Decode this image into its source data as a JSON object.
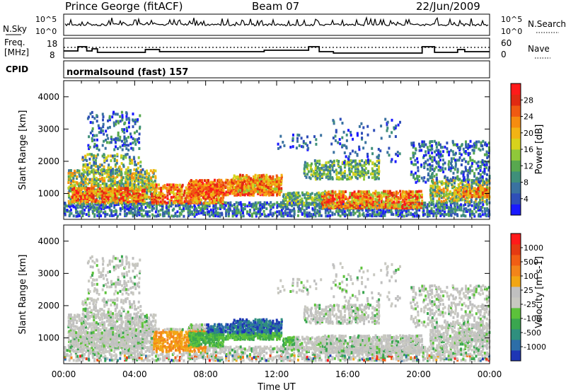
{
  "header": {
    "station": "Prince George (fitACF)",
    "beam": "Beam 07",
    "date": "22/Jun/2009",
    "cpid_label": "CPID",
    "cpid_value": "normalsound (fast) 157"
  },
  "top_panels": {
    "nsky_label": "N.Sky",
    "nsearch_label": "N.Search",
    "noise_ticks": [
      "10^5",
      "10^0"
    ],
    "freq_label_line1": "Freq.",
    "freq_label_line2": "[MHz]",
    "freq_ticks": [
      "18",
      "8"
    ],
    "nave_label": "Nave",
    "nave_ticks": [
      "60",
      "0"
    ]
  },
  "chart_data": [
    {
      "type": "heatmap",
      "name": "power",
      "ylabel": "Slant Range [km]",
      "xlabel": "Time UT",
      "ylim": [
        200,
        4500
      ],
      "yticks": [
        1000,
        2000,
        3000,
        4000
      ],
      "xlim_hours": [
        0,
        24
      ],
      "colorbar_label": "Power [dB]",
      "colorbar_ticks": [
        "4",
        "8",
        "12",
        "16",
        "20",
        "24",
        "28"
      ],
      "colorbar_colors": [
        "#1a1aff",
        "#2f4fb8",
        "#3a72a0",
        "#3f8f7a",
        "#58a84f",
        "#8fc83a",
        "#d7d21c",
        "#f2b315",
        "#f58c10",
        "#ef5a12",
        "#e02a12",
        "#ff1a1a"
      ]
    },
    {
      "type": "heatmap",
      "name": "velocity",
      "ylabel": "Slant Range [km]",
      "xlabel": "Time UT",
      "ylim": [
        200,
        4500
      ],
      "yticks": [
        1000,
        2000,
        3000,
        4000
      ],
      "xlim_hours": [
        0,
        24
      ],
      "colorbar_label": "Velocity [m s-1]",
      "colorbar_ticks": [
        "1000",
        "500",
        "100",
        "25",
        "-25",
        "-100",
        "-500",
        "-1000"
      ],
      "colorbar_colors": [
        "#1e36b5",
        "#2d6ea8",
        "#2f8f7e",
        "#3aa64f",
        "#5cc23a",
        "#c8c8c0",
        "#c0c0c0",
        "#f2a614",
        "#f3841a",
        "#f15e14",
        "#e53a12",
        "#ff1a1a"
      ]
    }
  ],
  "x_axis": {
    "ticks": [
      "00:00",
      "04:00",
      "08:00",
      "12:00",
      "16:00",
      "20:00",
      "00:00"
    ],
    "label": "Time UT"
  }
}
